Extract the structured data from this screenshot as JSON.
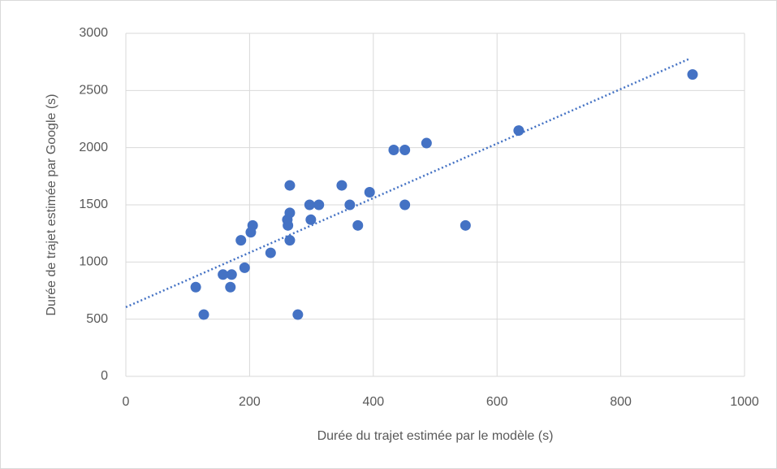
{
  "chart_data": {
    "type": "scatter",
    "x_label": "Durée du trajet estimée par le modèle (s)",
    "y_label": "Durée de trajet estimée par Google (s)",
    "series": [
      {
        "color": "#4472c4",
        "x": [
          113,
          126,
          157,
          171,
          169,
          186,
          192,
          202,
          205,
          234,
          265,
          261,
          262,
          265,
          265,
          278,
          297,
          299,
          312,
          349,
          362,
          375,
          394,
          433,
          451,
          486,
          451,
          549,
          635,
          916
        ],
        "values": [
          780,
          540,
          890,
          890,
          780,
          1190,
          950,
          1260,
          1320,
          1080,
          1670,
          1370,
          1320,
          1430,
          1190,
          540,
          1500,
          1370,
          1500,
          1670,
          1500,
          1320,
          1610,
          1980,
          1980,
          2040,
          1500,
          1320,
          2150,
          2640
        ]
      }
    ],
    "trendline": {
      "color": "#4472c4",
      "x": [
        0,
        910
      ],
      "values": [
        605,
        2775
      ]
    },
    "xlim": [
      0,
      1000
    ],
    "xticks": [
      0,
      200,
      400,
      600,
      800,
      1000
    ],
    "ylim": [
      0,
      3000
    ],
    "yticks": [
      0,
      500,
      1000,
      1500,
      2000,
      2500,
      3000
    ],
    "grid": true
  }
}
